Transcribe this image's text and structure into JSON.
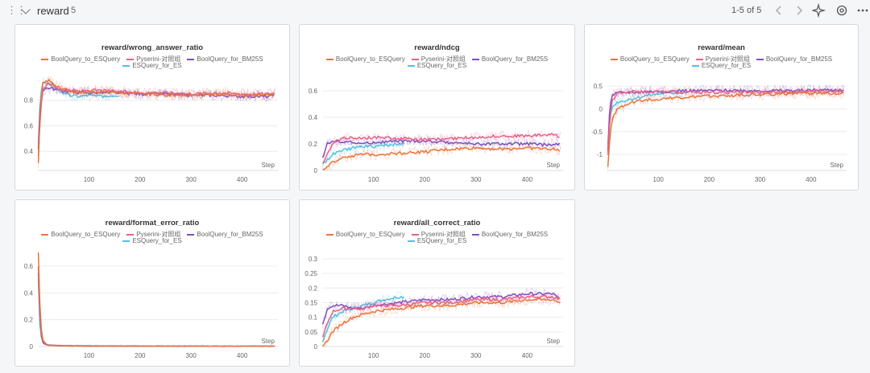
{
  "header": {
    "section_title": "reward",
    "section_count": "5",
    "pager": "1-5 of 5",
    "icons": [
      "drag-handle-icon",
      "chevron-down-icon",
      "chevron-left-icon",
      "chevron-right-icon",
      "sparkle-icon",
      "gear-icon",
      "more-icon"
    ]
  },
  "legend": {
    "s1": "BoolQuery_to_ESQuery",
    "s2": "Pyserini-对照组",
    "s3": "BoolQuery_for_BM25S",
    "s4": "ESQuery_for_ES"
  },
  "colors": {
    "BoolQuery_to_ESQuery": "#e8743b",
    "Pyserini-对照组": "#e8608a",
    "BoolQuery_for_BM25S": "#7b4fbf",
    "ESQuery_for_ES": "#4fc3e0"
  },
  "chart_data": [
    {
      "id": "c1",
      "type": "line",
      "title": "reward/wrong_answer_ratio",
      "xlabel": "Step",
      "xlim": [
        0,
        470
      ],
      "ylim": [
        0.25,
        1.0
      ],
      "x_ticks": [
        100,
        200,
        300,
        400
      ],
      "y_ticks": [
        0.4,
        0.6,
        0.8
      ],
      "series": [
        {
          "name": "BoolQuery_to_ESQuery",
          "x": [
            1,
            5,
            10,
            20,
            40,
            60,
            80,
            100,
            150,
            200,
            250,
            300,
            350,
            400,
            450,
            465
          ],
          "y": [
            0.3,
            0.75,
            0.93,
            0.96,
            0.9,
            0.87,
            0.86,
            0.87,
            0.86,
            0.85,
            0.84,
            0.84,
            0.85,
            0.84,
            0.84,
            0.85
          ]
        },
        {
          "name": "Pyserini-对照组",
          "x": [
            1,
            5,
            10,
            20,
            40,
            60,
            80,
            100,
            150,
            200,
            250,
            300,
            350,
            400,
            450,
            465
          ],
          "y": [
            0.35,
            0.7,
            0.88,
            0.94,
            0.89,
            0.88,
            0.87,
            0.88,
            0.87,
            0.86,
            0.86,
            0.85,
            0.86,
            0.85,
            0.85,
            0.86
          ]
        },
        {
          "name": "BoolQuery_for_BM25S",
          "x": [
            1,
            5,
            10,
            20,
            40,
            60,
            80,
            100,
            150,
            200,
            250,
            300,
            350,
            400,
            450,
            465
          ],
          "y": [
            0.42,
            0.8,
            0.88,
            0.9,
            0.88,
            0.87,
            0.86,
            0.86,
            0.86,
            0.85,
            0.85,
            0.84,
            0.84,
            0.83,
            0.83,
            0.84
          ]
        },
        {
          "name": "ESQuery_for_ES",
          "x": [
            1,
            5,
            10,
            20,
            40,
            60,
            80,
            100,
            120,
            150,
            160
          ],
          "y": [
            0.45,
            0.85,
            0.94,
            0.93,
            0.88,
            0.84,
            0.83,
            0.84,
            0.83,
            0.84,
            0.84
          ]
        }
      ]
    },
    {
      "id": "c2",
      "type": "line",
      "title": "reward/ndcg",
      "xlabel": "Step",
      "xlim": [
        0,
        470
      ],
      "ylim": [
        0,
        0.72
      ],
      "x_ticks": [
        100,
        200,
        300,
        400
      ],
      "y_ticks": [
        0,
        0.2,
        0.4,
        0.6
      ],
      "series": [
        {
          "name": "BoolQuery_to_ESQuery",
          "x": [
            1,
            10,
            20,
            40,
            60,
            80,
            100,
            150,
            200,
            250,
            300,
            350,
            400,
            450,
            465
          ],
          "y": [
            0.0,
            0.02,
            0.06,
            0.1,
            0.11,
            0.12,
            0.12,
            0.13,
            0.14,
            0.16,
            0.17,
            0.16,
            0.17,
            0.16,
            0.15
          ]
        },
        {
          "name": "Pyserini-对照组",
          "x": [
            1,
            10,
            20,
            40,
            60,
            80,
            100,
            150,
            200,
            250,
            300,
            350,
            400,
            450,
            465
          ],
          "y": [
            0.05,
            0.12,
            0.2,
            0.24,
            0.25,
            0.24,
            0.25,
            0.24,
            0.23,
            0.24,
            0.25,
            0.26,
            0.26,
            0.27,
            0.25
          ]
        },
        {
          "name": "BoolQuery_for_BM25S",
          "x": [
            1,
            10,
            20,
            40,
            60,
            80,
            100,
            150,
            200,
            250,
            300,
            350,
            400,
            450,
            465
          ],
          "y": [
            0.1,
            0.2,
            0.22,
            0.22,
            0.21,
            0.2,
            0.21,
            0.22,
            0.22,
            0.21,
            0.2,
            0.2,
            0.2,
            0.19,
            0.2
          ]
        },
        {
          "name": "ESQuery_for_ES",
          "x": [
            1,
            10,
            20,
            40,
            60,
            80,
            100,
            120,
            150,
            160
          ],
          "y": [
            0.05,
            0.08,
            0.12,
            0.15,
            0.17,
            0.18,
            0.18,
            0.19,
            0.2,
            0.2
          ]
        }
      ]
    },
    {
      "id": "c3",
      "type": "line",
      "title": "reward/mean",
      "xlabel": "Step",
      "xlim": [
        0,
        470
      ],
      "ylim": [
        -1.35,
        0.75
      ],
      "x_ticks": [
        100,
        200,
        300,
        400
      ],
      "y_ticks": [
        -1,
        -0.5,
        0,
        0.5
      ],
      "series": [
        {
          "name": "BoolQuery_to_ESQuery",
          "x": [
            1,
            5,
            10,
            20,
            40,
            60,
            80,
            100,
            150,
            200,
            250,
            300,
            350,
            400,
            450,
            465
          ],
          "y": [
            -1.3,
            -0.6,
            -0.2,
            0.0,
            0.12,
            0.18,
            0.2,
            0.22,
            0.25,
            0.28,
            0.3,
            0.32,
            0.33,
            0.34,
            0.35,
            0.36
          ]
        },
        {
          "name": "Pyserini-对照组",
          "x": [
            1,
            5,
            10,
            20,
            40,
            60,
            80,
            100,
            150,
            200,
            250,
            300,
            350,
            400,
            450,
            465
          ],
          "y": [
            -1.0,
            -0.2,
            0.2,
            0.35,
            0.38,
            0.38,
            0.37,
            0.38,
            0.37,
            0.36,
            0.37,
            0.36,
            0.37,
            0.38,
            0.39,
            0.38
          ]
        },
        {
          "name": "BoolQuery_for_BM25S",
          "x": [
            1,
            5,
            10,
            20,
            40,
            60,
            80,
            100,
            150,
            200,
            250,
            300,
            350,
            400,
            450,
            465
          ],
          "y": [
            -0.9,
            0.1,
            0.3,
            0.35,
            0.36,
            0.37,
            0.38,
            0.38,
            0.4,
            0.4,
            0.41,
            0.4,
            0.4,
            0.41,
            0.42,
            0.4
          ]
        },
        {
          "name": "ESQuery_for_ES",
          "x": [
            1,
            5,
            10,
            20,
            40,
            60,
            80,
            100,
            120,
            150,
            160
          ],
          "y": [
            -0.8,
            -0.2,
            0.05,
            0.15,
            0.2,
            0.25,
            0.3,
            0.33,
            0.35,
            0.36,
            0.36
          ]
        }
      ]
    },
    {
      "id": "c4",
      "type": "line",
      "title": "reward/format_error_ratio",
      "xlabel": "Step",
      "xlim": [
        0,
        470
      ],
      "ylim": [
        0,
        0.72
      ],
      "x_ticks": [
        100,
        200,
        300,
        400
      ],
      "y_ticks": [
        0,
        0.2,
        0.4,
        0.6
      ],
      "series": [
        {
          "name": "BoolQuery_to_ESQuery",
          "x": [
            1,
            3,
            6,
            10,
            15,
            20,
            30,
            50,
            100,
            200,
            300,
            400,
            465
          ],
          "y": [
            0.7,
            0.4,
            0.15,
            0.05,
            0.02,
            0.01,
            0.01,
            0.005,
            0.004,
            0.003,
            0.003,
            0.002,
            0.002
          ]
        },
        {
          "name": "Pyserini-对照组",
          "x": [
            1,
            3,
            6,
            10,
            15,
            20,
            30,
            50,
            100,
            200,
            300,
            400,
            465
          ],
          "y": [
            0.6,
            0.35,
            0.12,
            0.04,
            0.02,
            0.01,
            0.008,
            0.005,
            0.004,
            0.003,
            0.002,
            0.002,
            0.002
          ]
        },
        {
          "name": "BoolQuery_for_BM25S",
          "x": [
            1,
            3,
            6,
            10,
            15,
            20,
            30,
            50,
            100,
            200,
            300,
            400,
            465
          ],
          "y": [
            0.55,
            0.3,
            0.1,
            0.03,
            0.015,
            0.01,
            0.008,
            0.005,
            0.003,
            0.002,
            0.002,
            0.002,
            0.001
          ]
        },
        {
          "name": "ESQuery_for_ES",
          "x": [
            1,
            3,
            6,
            10,
            15,
            20,
            30,
            50,
            100,
            150,
            160
          ],
          "y": [
            0.5,
            0.2,
            0.08,
            0.03,
            0.015,
            0.01,
            0.008,
            0.006,
            0.005,
            0.004,
            0.004
          ]
        }
      ]
    },
    {
      "id": "c5",
      "type": "line",
      "title": "reward/all_correct_ratio",
      "xlabel": "Step",
      "xlim": [
        0,
        470
      ],
      "ylim": [
        0,
        0.33
      ],
      "x_ticks": [
        100,
        200,
        300,
        400
      ],
      "y_ticks": [
        0,
        0.05,
        0.1,
        0.15,
        0.2,
        0.25,
        0.3
      ],
      "series": [
        {
          "name": "BoolQuery_to_ESQuery",
          "x": [
            1,
            10,
            20,
            40,
            60,
            80,
            100,
            150,
            200,
            250,
            300,
            350,
            400,
            450,
            465
          ],
          "y": [
            0.0,
            0.02,
            0.05,
            0.08,
            0.1,
            0.11,
            0.12,
            0.13,
            0.14,
            0.14,
            0.15,
            0.15,
            0.16,
            0.16,
            0.15
          ]
        },
        {
          "name": "Pyserini-对照组",
          "x": [
            1,
            10,
            20,
            40,
            60,
            80,
            100,
            150,
            200,
            250,
            300,
            350,
            400,
            450,
            465
          ],
          "y": [
            0.03,
            0.08,
            0.12,
            0.13,
            0.13,
            0.13,
            0.14,
            0.14,
            0.15,
            0.15,
            0.16,
            0.16,
            0.17,
            0.17,
            0.16
          ]
        },
        {
          "name": "BoolQuery_for_BM25S",
          "x": [
            1,
            10,
            20,
            40,
            60,
            80,
            100,
            150,
            200,
            250,
            300,
            350,
            400,
            450,
            465
          ],
          "y": [
            0.08,
            0.13,
            0.14,
            0.14,
            0.13,
            0.13,
            0.14,
            0.15,
            0.16,
            0.16,
            0.17,
            0.17,
            0.18,
            0.18,
            0.16
          ]
        },
        {
          "name": "ESQuery_for_ES",
          "x": [
            1,
            10,
            20,
            40,
            60,
            80,
            100,
            120,
            150,
            160
          ],
          "y": [
            0.02,
            0.06,
            0.1,
            0.12,
            0.13,
            0.14,
            0.15,
            0.16,
            0.17,
            0.17
          ]
        }
      ]
    }
  ]
}
